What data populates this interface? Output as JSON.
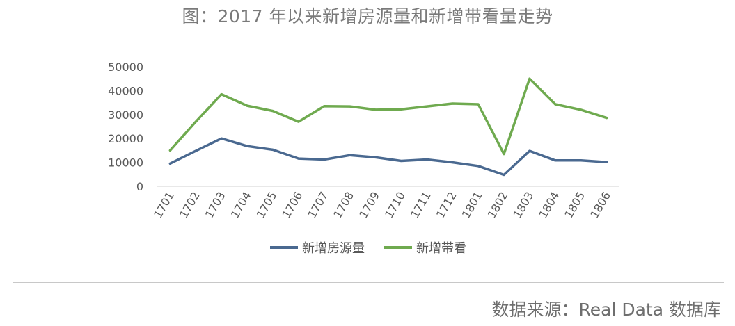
{
  "page": {
    "title": "图：2017 年以来新增房源量和新增带看量走势",
    "source": "数据来源：Real Data 数据库"
  },
  "chart_data": {
    "type": "line",
    "title": "图：2017 年以来新增房源量和新增带看量走势",
    "xlabel": "",
    "ylabel": "",
    "categories": [
      "1701",
      "1702",
      "1703",
      "1704",
      "1705",
      "1706",
      "1707",
      "1708",
      "1709",
      "1710",
      "1711",
      "1712",
      "1801",
      "1802",
      "1803",
      "1804",
      "1805",
      "1806"
    ],
    "yticks": [
      "0",
      "10000",
      "20000",
      "30000",
      "40000",
      "50000"
    ],
    "ylim": [
      0,
      50000
    ],
    "grid": false,
    "legend": "bottom",
    "series": [
      {
        "name": "新增房源量",
        "color": "#4a6990",
        "values": [
          9500,
          14800,
          20000,
          16800,
          15300,
          11600,
          11200,
          13000,
          12100,
          10600,
          11200,
          10000,
          8500,
          4800,
          14800,
          10800,
          10800,
          10100
        ]
      },
      {
        "name": "新增带看",
        "color": "#6faa4f",
        "values": [
          15000,
          27000,
          38500,
          33700,
          31500,
          27000,
          33500,
          33400,
          32000,
          32200,
          33400,
          34600,
          34300,
          13500,
          45000,
          34300,
          32000,
          28600
        ]
      }
    ]
  }
}
